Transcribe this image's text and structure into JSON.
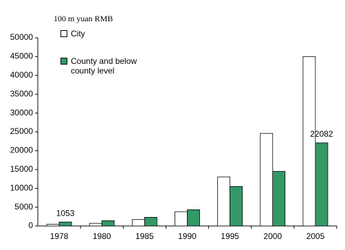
{
  "chart_data": {
    "type": "bar",
    "y_axis_label": "100 m yuan RMB",
    "categories": [
      "1978",
      "1980",
      "1985",
      "1990",
      "1995",
      "2000",
      "2005"
    ],
    "series": [
      {
        "name": "City",
        "color": "#ffffff",
        "values": [
          450,
          700,
          1700,
          3800,
          13000,
          24600,
          45000
        ]
      },
      {
        "name": "County and below county level",
        "color": "#339966",
        "values": [
          1053,
          1400,
          2300,
          4300,
          10500,
          14500,
          22082
        ],
        "value_labels": [
          "1053",
          null,
          null,
          null,
          null,
          null,
          "22082"
        ]
      }
    ],
    "ylim": [
      0,
      50000
    ],
    "yticks": [
      0,
      5000,
      10000,
      15000,
      20000,
      25000,
      30000,
      35000,
      40000,
      45000,
      50000
    ],
    "legend": "top-left"
  }
}
